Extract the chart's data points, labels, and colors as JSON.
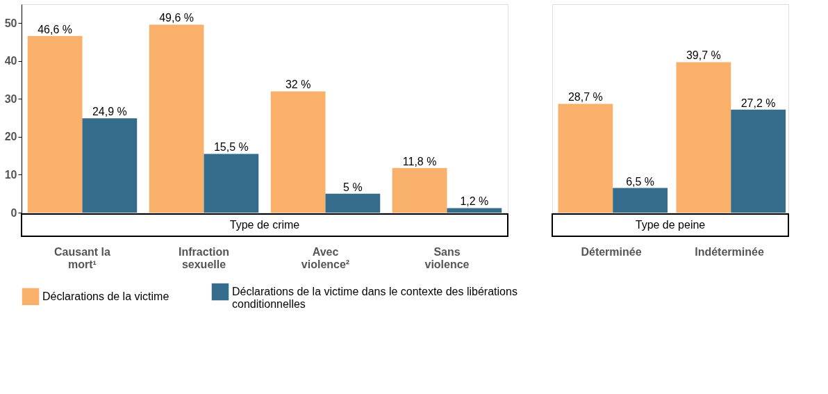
{
  "chart_data": [
    {
      "type": "bar",
      "xlabel": "Type de crime",
      "categories": [
        "Causant la mort¹",
        "Infraction sexuelle",
        "Avec violence²",
        "Sans violence"
      ],
      "series": [
        {
          "name": "Déclarations de la victime",
          "color": "#f8b06a",
          "values": [
            46.6,
            49.6,
            32,
            11.8
          ],
          "value_labels": [
            "46,6 %",
            "49,6 %",
            "32 %",
            "11,8 %"
          ]
        },
        {
          "name": "Déclarations de la victime dans le contexte des libérations conditionnelles",
          "color": "#356b8b",
          "values": [
            24.9,
            15.5,
            5,
            1.2
          ],
          "value_labels": [
            "24,9 %",
            "15,5 %",
            "5 %",
            "1,2 %"
          ]
        }
      ],
      "ylim": [
        0,
        55
      ],
      "yticks": [
        0,
        10,
        20,
        30,
        40,
        50
      ],
      "grid": false,
      "legend": "bottom"
    },
    {
      "type": "bar",
      "xlabel": "Type de peine",
      "categories": [
        "Déterminée",
        "Indéterminée"
      ],
      "series": [
        {
          "name": "Déclarations de la victime",
          "color": "#f8b06a",
          "values": [
            28.7,
            39.7
          ],
          "value_labels": [
            "28,7 %",
            "39,7 %"
          ]
        },
        {
          "name": "Déclarations de la victime dans le contexte des libérations conditionnelles",
          "color": "#356b8b",
          "values": [
            6.5,
            27.2
          ],
          "value_labels": [
            "6,5 %",
            "27,2 %"
          ]
        }
      ],
      "ylim": [
        0,
        55
      ],
      "yticks": [
        0,
        10,
        20,
        30,
        40,
        50
      ],
      "grid": false,
      "legend": "bottom",
      "tick_labels": "x"
    }
  ]
}
